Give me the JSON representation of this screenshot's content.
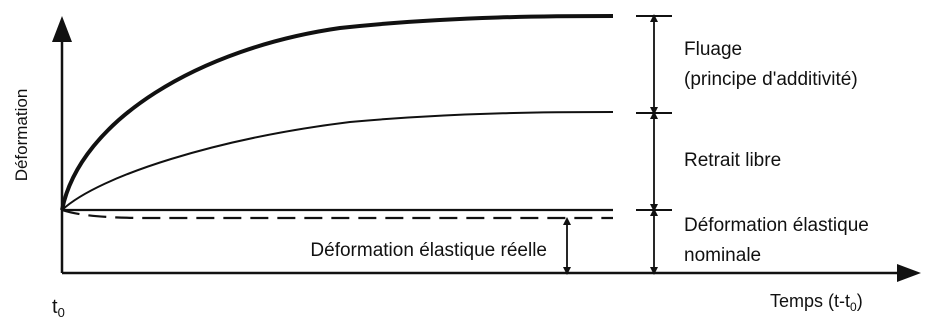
{
  "figure": {
    "y_axis_label": "Déformation",
    "x_axis_label_main": "Temps (t-t",
    "x_axis_label_sub": "0",
    "x_axis_label_close": ")",
    "origin_label_main": "t",
    "origin_label_sub": "0",
    "zones": {
      "fluage_line1": "Fluage",
      "fluage_line2": "(principe d'additivité)",
      "retrait": "Retrait libre",
      "elastique_nominale_line1": "Déformation élastique",
      "elastique_nominale_line2": "nominale",
      "elastique_reelle": "Déformation élastique réelle"
    }
  },
  "colors": {
    "ink": "#111111",
    "background": "#ffffff"
  }
}
